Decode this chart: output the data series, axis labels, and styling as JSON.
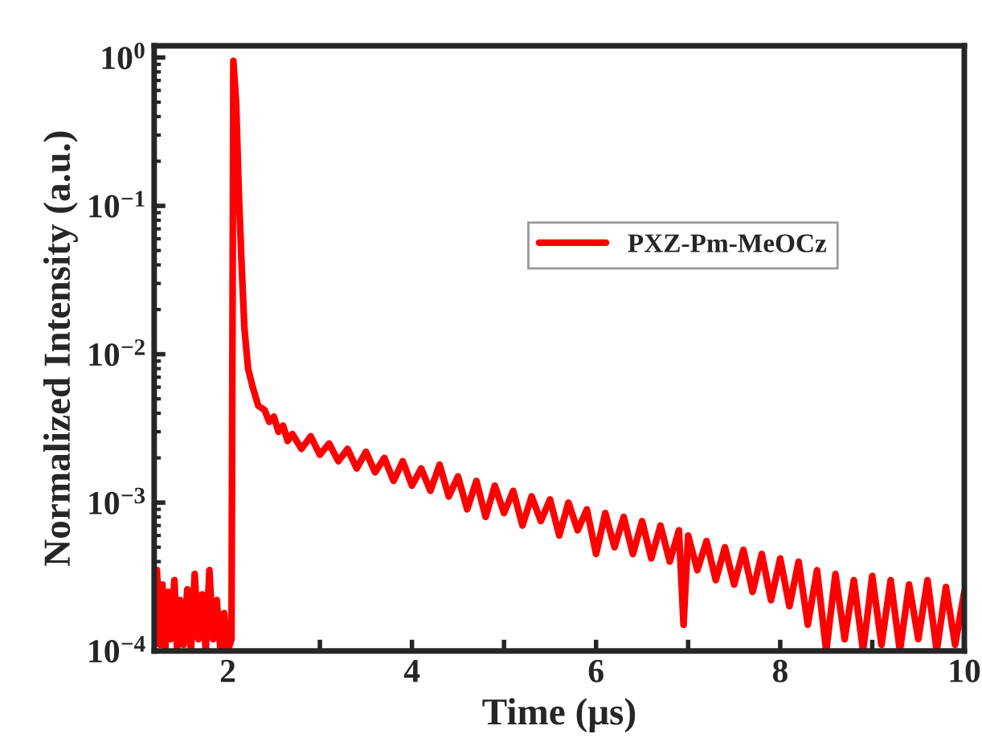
{
  "chart_data": {
    "type": "line",
    "xlabel": "Time (μs)",
    "ylabel": "Normalized Intensity (a.u.)",
    "log": "y",
    "legend": "right",
    "grid": false,
    "line_style": "solid",
    "marker": "none",
    "xlim": [
      1.2,
      10
    ],
    "xticks": [
      2,
      {
        "value": 3,
        "label": null
      },
      4,
      {
        "value": 5,
        "label": null
      },
      6,
      {
        "value": 7,
        "label": null
      },
      8,
      {
        "value": 9,
        "label": null
      },
      10
    ],
    "ylim": [
      0.0001,
      1.2
    ],
    "yticks": [
      {
        "value": 0.0001,
        "label": "10$^{−4}$"
      },
      {
        "value": 0.001,
        "label": "10$^{−3}$"
      },
      {
        "value": 0.01,
        "label": "10$^{−2}$"
      },
      {
        "value": 0.1,
        "label": "10$^{−1}$"
      },
      {
        "value": 1,
        "label": "10$^{0}$"
      }
    ],
    "series": [
      {
        "name": "PXZ-Pm-MeOCz",
        "color": "#ff0000",
        "x": [
          1.2,
          1.23,
          1.26,
          1.29,
          1.32,
          1.35,
          1.38,
          1.42,
          1.45,
          1.48,
          1.52,
          1.56,
          1.6,
          1.64,
          1.68,
          1.72,
          1.76,
          1.8,
          1.84,
          1.88,
          1.92,
          1.96,
          2.0,
          2.04,
          2.06,
          2.09,
          2.12,
          2.15,
          2.18,
          2.22,
          2.27,
          2.33,
          2.4,
          2.45,
          2.5,
          2.55,
          2.6,
          2.65,
          2.7,
          2.8,
          2.9,
          3.0,
          3.1,
          3.2,
          3.3,
          3.4,
          3.5,
          3.6,
          3.7,
          3.8,
          3.9,
          4.0,
          4.1,
          4.2,
          4.3,
          4.4,
          4.5,
          4.6,
          4.7,
          4.8,
          4.9,
          5.0,
          5.1,
          5.2,
          5.3,
          5.4,
          5.5,
          5.6,
          5.7,
          5.8,
          5.9,
          6.0,
          6.1,
          6.2,
          6.3,
          6.4,
          6.5,
          6.6,
          6.7,
          6.8,
          6.9,
          6.95,
          7.0,
          7.1,
          7.2,
          7.3,
          7.4,
          7.5,
          7.6,
          7.7,
          7.8,
          7.9,
          8.0,
          8.1,
          8.2,
          8.3,
          8.4,
          8.5,
          8.6,
          8.7,
          8.8,
          8.9,
          9.0,
          9.1,
          9.2,
          9.3,
          9.4,
          9.5,
          9.6,
          9.7,
          9.8,
          9.9,
          10.0
        ],
        "values": [
          0.00012,
          0.00035,
          0.00011,
          0.00028,
          0.0001,
          0.00025,
          0.00012,
          0.0003,
          0.0001,
          0.00022,
          0.00011,
          0.00026,
          0.0001,
          0.00033,
          0.00012,
          0.00024,
          0.0001,
          0.00035,
          0.00012,
          0.00022,
          0.0001,
          0.00018,
          0.0001,
          0.00012,
          0.95,
          0.5,
          0.12,
          0.04,
          0.015,
          0.008,
          0.006,
          0.0045,
          0.0042,
          0.0035,
          0.0038,
          0.003,
          0.0033,
          0.0026,
          0.0029,
          0.0023,
          0.0028,
          0.0021,
          0.0025,
          0.0019,
          0.0023,
          0.0017,
          0.0022,
          0.0016,
          0.002,
          0.0014,
          0.0019,
          0.0013,
          0.0017,
          0.0012,
          0.0018,
          0.0011,
          0.0015,
          0.0009,
          0.0014,
          0.0008,
          0.0013,
          0.00085,
          0.0012,
          0.0007,
          0.0011,
          0.00075,
          0.00105,
          0.0006,
          0.001,
          0.00065,
          0.0009,
          0.00045,
          0.00085,
          0.0005,
          0.0008,
          0.00045,
          0.00075,
          0.00042,
          0.0007,
          0.0004,
          0.00065,
          0.00015,
          0.0006,
          0.00035,
          0.00055,
          0.0003,
          0.0005,
          0.00028,
          0.00048,
          0.00025,
          0.00045,
          0.00022,
          0.00042,
          0.0002,
          0.0004,
          0.00015,
          0.00035,
          0.0001,
          0.00033,
          0.00012,
          0.0003,
          0.0001,
          0.00032,
          0.00011,
          0.0003,
          0.0001,
          0.00028,
          0.00012,
          0.0003,
          0.0001,
          0.00027,
          0.00011,
          0.00025
        ]
      }
    ]
  }
}
